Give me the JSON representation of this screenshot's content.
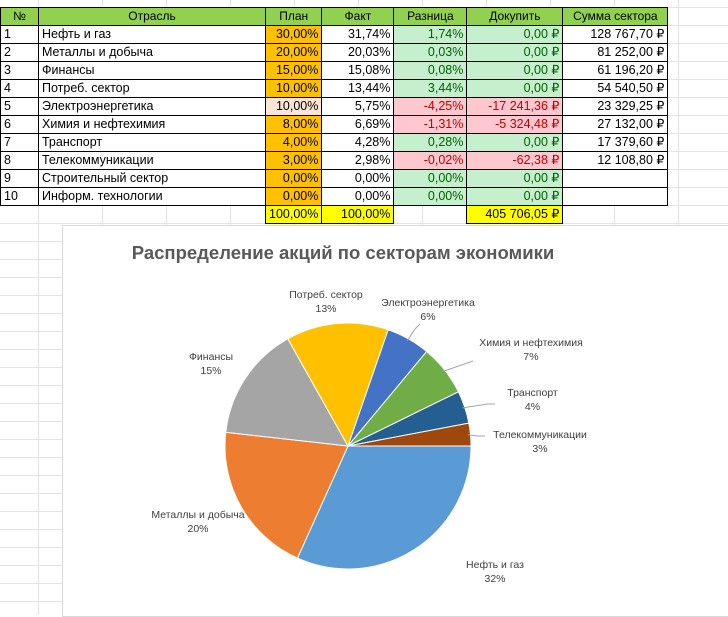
{
  "table": {
    "headers": [
      "№",
      "Отрасль",
      "План",
      "Факт",
      "Разница",
      "Докупить",
      "Сумма сектора"
    ],
    "rows": [
      {
        "no": "1",
        "sector": "Нефть и газ",
        "plan": "30,00%",
        "fact": "31,74%",
        "diff": "1,74%",
        "buy": "0,00 ₽",
        "sum": "128 767,70 ₽"
      },
      {
        "no": "2",
        "sector": "Металлы и добыча",
        "plan": "20,00%",
        "fact": "20,03%",
        "diff": "0,03%",
        "buy": "0,00 ₽",
        "sum": "81 252,00 ₽"
      },
      {
        "no": "3",
        "sector": "Финансы",
        "plan": "15,00%",
        "fact": "15,08%",
        "diff": "0,08%",
        "buy": "0,00 ₽",
        "sum": "61 196,20 ₽"
      },
      {
        "no": "4",
        "sector": "Потреб. сектор",
        "plan": "10,00%",
        "fact": "13,44%",
        "diff": "3,44%",
        "buy": "0,00 ₽",
        "sum": "54 540,50 ₽"
      },
      {
        "no": "5",
        "sector": "Электроэнергетика",
        "plan": "10,00%",
        "fact": "5,75%",
        "diff": "-4,25%",
        "buy": "-17 241,36 ₽",
        "sum": "23 329,25 ₽"
      },
      {
        "no": "6",
        "sector": "Химия и нефтехимия",
        "plan": "8,00%",
        "fact": "6,69%",
        "diff": "-1,31%",
        "buy": "-5 324,48 ₽",
        "sum": "27 132,00 ₽"
      },
      {
        "no": "7",
        "sector": "Транспорт",
        "plan": "4,00%",
        "fact": "4,28%",
        "diff": "0,28%",
        "buy": "0,00 ₽",
        "sum": "17 379,60 ₽"
      },
      {
        "no": "8",
        "sector": "Телекоммуникации",
        "plan": "3,00%",
        "fact": "2,98%",
        "diff": "-0,02%",
        "buy": "-62,38 ₽",
        "sum": "12 108,80 ₽"
      },
      {
        "no": "9",
        "sector": "Строительный сектор",
        "plan": "0,00%",
        "fact": "0,00%",
        "diff": "0,00%",
        "buy": "0,00 ₽",
        "sum": ""
      },
      {
        "no": "10",
        "sector": "Информ. технологии",
        "plan": "0,00%",
        "fact": "0,00%",
        "diff": "0,00%",
        "buy": "0,00 ₽",
        "sum": ""
      }
    ],
    "totals": {
      "plan": "100,00%",
      "fact": "100,00%",
      "buy": "405 706,05 ₽"
    }
  },
  "colors": {
    "header_green": "#92d050",
    "plan_orange": "#ffc000",
    "positive_bg": "#c6efce",
    "negative_bg": "#ffc7ce",
    "total_yellow": "#ffff00"
  },
  "chart_data": {
    "type": "pie",
    "title": "Распределение акций по секторам экономики",
    "categories": [
      "Нефть и газ",
      "Металлы и добыча",
      "Финансы",
      "Потреб. сектор",
      "Электроэнергетика",
      "Химия и нефтехимия",
      "Транспорт",
      "Телекоммуникации"
    ],
    "values": [
      31.74,
      20.03,
      15.08,
      13.44,
      5.75,
      6.69,
      4.28,
      2.98
    ],
    "data_labels": [
      "32%",
      "20%",
      "15%",
      "13%",
      "6%",
      "7%",
      "4%",
      "3%"
    ],
    "colors": [
      "#5b9bd5",
      "#ed7d31",
      "#a5a5a5",
      "#ffc000",
      "#4472c4",
      "#70ad47",
      "#255e91",
      "#9e480e"
    ],
    "legend": "none"
  }
}
